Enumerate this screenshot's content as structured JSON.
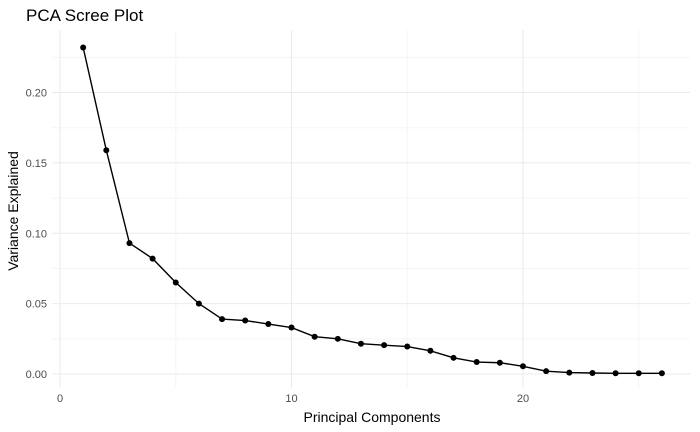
{
  "chart_data": {
    "type": "line",
    "title": "PCA Scree Plot",
    "xlabel": "Principal Components",
    "ylabel": "Variance Explained",
    "xlim": [
      0,
      26
    ],
    "ylim": [
      0,
      0.235
    ],
    "x_ticks": [
      0,
      10,
      20
    ],
    "x_tick_labels": [
      "0",
      "10",
      "20"
    ],
    "y_ticks": [
      0,
      0.05,
      0.1,
      0.15,
      0.2
    ],
    "y_tick_labels": [
      "0.00",
      "0.05",
      "0.10",
      "0.15",
      "0.20"
    ],
    "grid": true,
    "legend": "none",
    "series": [
      {
        "x": [
          1,
          2,
          3,
          4,
          5,
          6,
          7,
          8,
          9,
          10,
          11,
          12,
          13,
          14,
          15,
          16,
          17,
          18,
          19,
          20,
          21,
          22,
          23,
          24,
          25,
          26
        ],
        "values": [
          0.232,
          0.159,
          0.093,
          0.082,
          0.065,
          0.05,
          0.039,
          0.038,
          0.0355,
          0.033,
          0.0265,
          0.025,
          0.0215,
          0.0205,
          0.0195,
          0.0165,
          0.0115,
          0.0085,
          0.008,
          0.0055,
          0.002,
          0.001,
          0.0007,
          0.0005,
          0.0005,
          0.0005
        ]
      }
    ],
    "colors": {
      "line": "#000000",
      "point": "#000000",
      "grid_major": "#ebebeb",
      "grid_minor": "#f5f5f5",
      "tick_text": "#4d4d4d"
    }
  }
}
